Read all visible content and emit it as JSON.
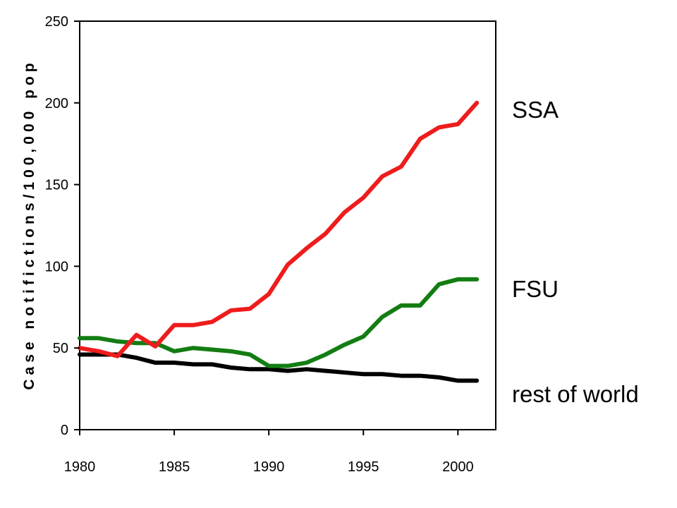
{
  "chart_data": {
    "type": "line",
    "title": "",
    "xlabel": "",
    "ylabel": "Case notifictions/100,000 pop",
    "xlim": [
      1980,
      2002
    ],
    "ylim": [
      0,
      250
    ],
    "xticks": [
      1980,
      1985,
      1990,
      1995,
      2000
    ],
    "yticks": [
      0,
      50,
      100,
      150,
      200,
      250
    ],
    "x": [
      1980,
      1981,
      1982,
      1983,
      1984,
      1985,
      1986,
      1987,
      1988,
      1989,
      1990,
      1991,
      1992,
      1993,
      1994,
      1995,
      1996,
      1997,
      1998,
      1999,
      2000,
      2001
    ],
    "series": [
      {
        "name": "SSA",
        "color": "#ee1c1c",
        "values": [
          50,
          48,
          45,
          58,
          51,
          64,
          64,
          66,
          73,
          74,
          83,
          101,
          111,
          120,
          133,
          142,
          155,
          161,
          178,
          185,
          187,
          200
        ]
      },
      {
        "name": "FSU",
        "color": "#137d13",
        "values": [
          56,
          56,
          54,
          53,
          53,
          48,
          50,
          49,
          48,
          46,
          39,
          39,
          41,
          46,
          52,
          57,
          69,
          76,
          76,
          89,
          92,
          92
        ]
      },
      {
        "name": "rest of world",
        "color": "#000000",
        "values": [
          46,
          46,
          46,
          44,
          41,
          41,
          40,
          40,
          38,
          37,
          37,
          36,
          37,
          36,
          35,
          34,
          34,
          33,
          33,
          32,
          30,
          30
        ]
      }
    ],
    "legend_placement": "right",
    "grid": false
  }
}
